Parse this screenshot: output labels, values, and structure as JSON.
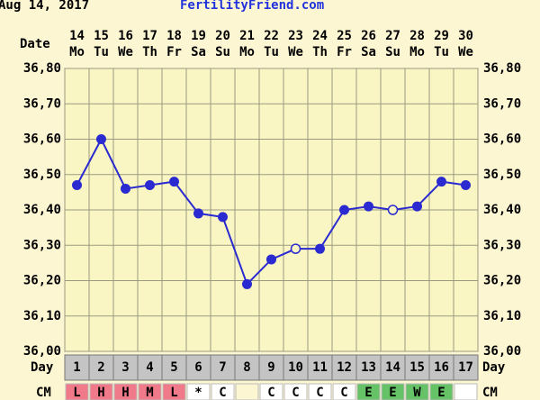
{
  "chart_data": {
    "type": "line",
    "header_date": "Aug 14, 2017",
    "site": "FertilityFriend.com",
    "date_label": "Date",
    "dates": [
      "14",
      "15",
      "16",
      "17",
      "18",
      "19",
      "20",
      "21",
      "22",
      "23",
      "24",
      "25",
      "26",
      "27",
      "28",
      "29",
      "30"
    ],
    "weekdays": [
      "Mo",
      "Tu",
      "We",
      "Th",
      "Fr",
      "Sa",
      "Su",
      "Mo",
      "Tu",
      "We",
      "Th",
      "Fr",
      "Sa",
      "Su",
      "Mo",
      "Tu",
      "We"
    ],
    "x_label": "Day",
    "categories": [
      "1",
      "2",
      "3",
      "4",
      "5",
      "6",
      "7",
      "8",
      "9",
      "10",
      "11",
      "12",
      "13",
      "14",
      "15",
      "16",
      "17"
    ],
    "values": [
      36.47,
      36.6,
      36.46,
      36.47,
      36.48,
      36.39,
      36.38,
      36.19,
      36.26,
      36.29,
      36.29,
      36.4,
      36.41,
      36.4,
      36.41,
      36.48,
      36.47
    ],
    "hollow": [
      false,
      false,
      false,
      false,
      false,
      false,
      false,
      false,
      false,
      true,
      false,
      false,
      false,
      true,
      false,
      false,
      false
    ],
    "color": "#2a2ad0",
    "ylim": [
      36.0,
      36.8
    ],
    "yticks": [
      {
        "value": 36.0,
        "label": "36,00"
      },
      {
        "value": 36.1,
        "label": "36,10"
      },
      {
        "value": 36.2,
        "label": "36,20"
      },
      {
        "value": 36.3,
        "label": "36,30"
      },
      {
        "value": 36.4,
        "label": "36,40"
      },
      {
        "value": 36.5,
        "label": "36,50"
      },
      {
        "value": 36.6,
        "label": "36,60"
      },
      {
        "value": 36.7,
        "label": "36,70"
      },
      {
        "value": 36.8,
        "label": "36,80"
      }
    ],
    "grid": true,
    "cm_label": "CM",
    "cm": [
      "L",
      "H",
      "H",
      "M",
      "L",
      "*",
      "C",
      null,
      "C",
      "C",
      "C",
      "C",
      "E",
      "E",
      "W",
      "E",
      null
    ],
    "cm_colors": [
      "#f07a8a",
      "#f07a8a",
      "#f07a8a",
      "#f07a8a",
      "#f07a8a",
      "#ffffff",
      "#ffffff",
      "#fdf6d2",
      "#ffffff",
      "#ffffff",
      "#ffffff",
      "#ffffff",
      "#66c266",
      "#66c266",
      "#66c266",
      "#66c266",
      "#ffffff"
    ]
  }
}
